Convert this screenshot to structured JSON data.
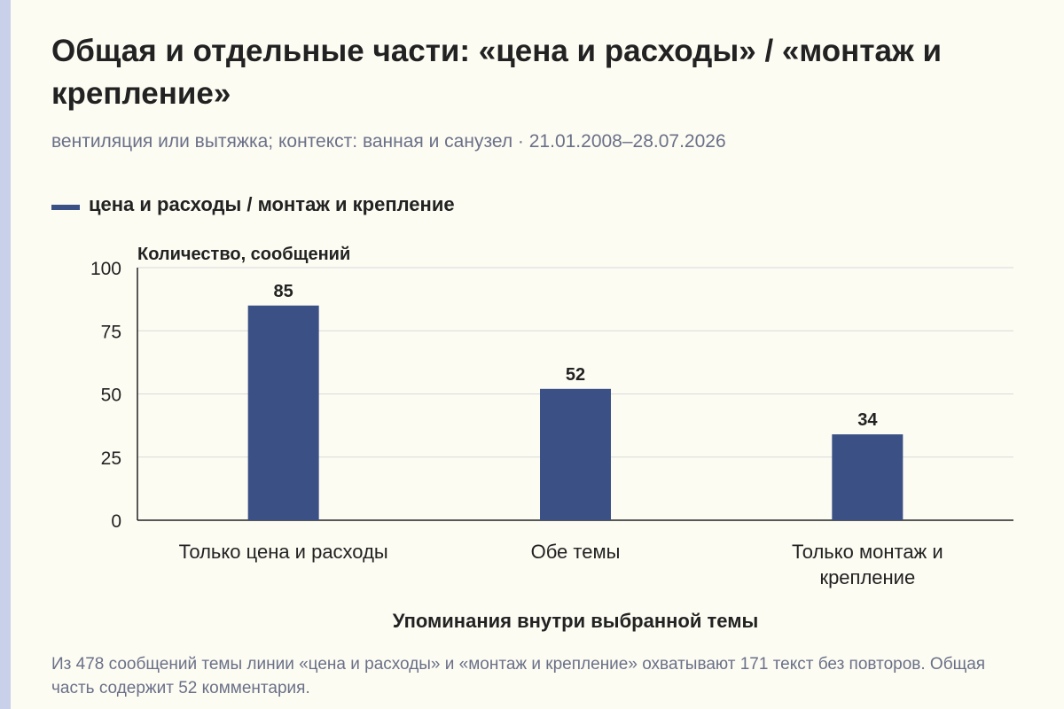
{
  "title": "Общая и отдельные части: «цена и расходы» / «монтаж и крепление»",
  "subtitle": "вентиляция или вытяжка; контекст: ванная и санузел · 21.01.2008–28.07.2026",
  "legend": {
    "label": "цена и расходы / монтаж и крепление",
    "color": "#3b5186"
  },
  "note": "Из 478 сообщений темы линии «цена и расходы» и «монтаж и крепление» охватывают 171 текст без повторов. Общая часть содержит 52 комментария.",
  "chart_data": {
    "type": "bar",
    "categories": [
      "Только цена и расходы",
      "Обе темы",
      "Только монтаж и крепление"
    ],
    "series": [
      {
        "name": "цена и расходы / монтаж и крепление",
        "values": [
          85,
          52,
          34
        ]
      }
    ],
    "ylabel": "Количество, сообщений",
    "xlabel": "Упоминания внутри выбранной темы",
    "ylim": [
      0,
      100
    ],
    "yticks": [
      0,
      25,
      50,
      75,
      100
    ],
    "grid": true,
    "data_labels": true,
    "bar_color": "#3b5186"
  }
}
